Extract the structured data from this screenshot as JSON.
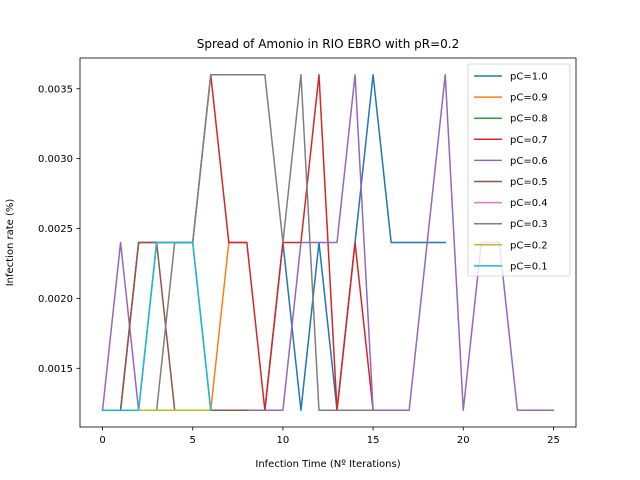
{
  "chart_data": {
    "type": "line",
    "title": "Spread of Amonio in RIO EBRO with pR=0.2",
    "xlabel": "Infection Time (Nº Iterations)",
    "ylabel": "Infection rate (%)",
    "xlim": [
      -1.25,
      26.25
    ],
    "ylim": [
      0.00108,
      0.00372
    ],
    "xticks": [
      0,
      5,
      10,
      15,
      20,
      25
    ],
    "xtick_labels": [
      "0",
      "5",
      "10",
      "15",
      "20",
      "25"
    ],
    "yticks": [
      0.0015,
      0.002,
      0.0025,
      0.003,
      0.0035
    ],
    "ytick_labels": [
      "0.0015",
      "0.0020",
      "0.0025",
      "0.0030",
      "0.0035"
    ],
    "grid": false,
    "legend_position": "top-right",
    "series": [
      {
        "name": "pC=1.0",
        "color": "#1f77b4",
        "x": [
          0,
          1,
          2,
          3,
          4,
          5,
          6,
          7,
          8,
          9,
          10,
          11,
          12,
          13,
          14,
          15,
          16,
          17,
          18,
          19
        ],
        "y": [
          0.0012,
          0.0012,
          0.0012,
          0.0012,
          0.0012,
          0.0012,
          0.0012,
          0.0012,
          0.0012,
          0.0012,
          0.0024,
          0.0012,
          0.0024,
          0.0012,
          0.0024,
          0.0036,
          0.0024,
          0.0024,
          0.0024,
          0.0024
        ]
      },
      {
        "name": "pC=0.9",
        "color": "#ff7f0e",
        "x": [
          0,
          1,
          2,
          3,
          4,
          5,
          6,
          7,
          8
        ],
        "y": [
          0.0012,
          0.0012,
          0.0012,
          0.0012,
          0.0012,
          0.0012,
          0.0012,
          0.0024,
          0.0024
        ]
      },
      {
        "name": "pC=0.8",
        "color": "#2ca02c",
        "x": [
          0,
          1,
          2,
          3,
          4,
          5,
          6
        ],
        "y": [
          0.0012,
          0.0012,
          0.0012,
          0.0012,
          0.0012,
          0.0012,
          0.0012
        ]
      },
      {
        "name": "pC=0.7",
        "color": "#d62728",
        "x": [
          0,
          1,
          2,
          3,
          4,
          5,
          6,
          7,
          8,
          9,
          10,
          11,
          12,
          13,
          14,
          15
        ],
        "y": [
          0.0012,
          0.0012,
          0.0024,
          0.0024,
          0.0024,
          0.0024,
          0.0036,
          0.0024,
          0.0024,
          0.0012,
          0.0024,
          0.0024,
          0.0036,
          0.0012,
          0.0024,
          0.0012
        ]
      },
      {
        "name": "pC=0.6",
        "color": "#9467bd",
        "x": [
          0,
          1,
          2,
          3,
          4,
          5,
          6,
          7,
          8,
          9,
          10,
          11,
          12,
          13,
          14,
          15,
          16,
          17,
          18,
          19,
          20,
          21,
          22,
          23,
          24,
          25
        ],
        "y": [
          0.0012,
          0.0024,
          0.0012,
          0.0024,
          0.0024,
          0.0024,
          0.0012,
          0.0012,
          0.0012,
          0.0012,
          0.0012,
          0.0024,
          0.0024,
          0.0024,
          0.0036,
          0.0012,
          0.0012,
          0.0012,
          0.0024,
          0.0036,
          0.0012,
          0.0024,
          0.0024,
          0.0012,
          0.0012,
          0.0012
        ]
      },
      {
        "name": "pC=0.5",
        "color": "#8c564b",
        "x": [
          0,
          1,
          2,
          3,
          4,
          5,
          6,
          7,
          8
        ],
        "y": [
          0.0012,
          0.0012,
          0.0024,
          0.0024,
          0.0012,
          0.0012,
          0.0012,
          0.0012,
          0.0012
        ]
      },
      {
        "name": "pC=0.4",
        "color": "#e377c2",
        "x": [
          0,
          1,
          2,
          3,
          4,
          5,
          6
        ],
        "y": [
          0.0012,
          0.0012,
          0.0012,
          0.0012,
          0.0012,
          0.0012,
          0.0012
        ]
      },
      {
        "name": "pC=0.3",
        "color": "#7f7f7f",
        "x": [
          0,
          1,
          2,
          3,
          4,
          5,
          6,
          7,
          8,
          9,
          10,
          11,
          12,
          13,
          14,
          15
        ],
        "y": [
          0.0012,
          0.0012,
          0.0012,
          0.0012,
          0.0024,
          0.0024,
          0.0036,
          0.0036,
          0.0036,
          0.0036,
          0.0024,
          0.0036,
          0.0012,
          0.0012,
          0.0012,
          0.0012
        ]
      },
      {
        "name": "pC=0.2",
        "color": "#bcbd22",
        "x": [
          0,
          1,
          2,
          3,
          4,
          5,
          6
        ],
        "y": [
          0.0012,
          0.0012,
          0.0012,
          0.0012,
          0.0012,
          0.0012,
          0.0012
        ]
      },
      {
        "name": "pC=0.1",
        "color": "#17becf",
        "x": [
          0,
          1,
          2,
          3,
          4,
          5,
          6
        ],
        "y": [
          0.0012,
          0.0012,
          0.0012,
          0.0024,
          0.0024,
          0.0024,
          0.0012
        ]
      }
    ]
  }
}
